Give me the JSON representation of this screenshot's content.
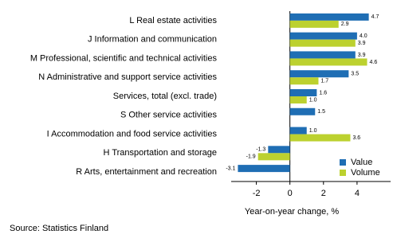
{
  "chart_data": {
    "type": "hbar",
    "categories": [
      "L Real estate activities",
      "J Information and communication",
      "M Professional, scientific and technical activities",
      "N Administrative and support service activities",
      "Services, total (excl. trade)",
      "S Other service activities",
      "I Accommodation and food service activities",
      "H Transportation and storage",
      "R Arts, entertainment and recreation"
    ],
    "series": [
      {
        "name": "Value",
        "color": "#1f6eb4",
        "values": [
          4.7,
          4.0,
          3.9,
          3.5,
          1.6,
          1.5,
          1.0,
          -1.3,
          -3.1
        ],
        "value_labels": [
          "4.7",
          "4.0",
          "3.9",
          "3.5",
          "1.6",
          "1.5",
          "1.0",
          "-1.3",
          "-3.1"
        ]
      },
      {
        "name": "Volume",
        "color": "#bcd12f",
        "values": [
          2.9,
          3.9,
          4.6,
          1.7,
          1.0,
          null,
          3.6,
          -1.9,
          null
        ],
        "value_labels": [
          "2.9",
          "3.9",
          "4.6",
          "1.7",
          "1.0",
          null,
          "3.6",
          "-1.9",
          null
        ]
      }
    ],
    "xlim": [
      -3.5,
      6
    ],
    "xticks": [
      -2,
      0,
      2,
      4
    ],
    "xlabel": "Year-on-year change, %",
    "source": "Source: Statistics Finland",
    "legend": "lower-right"
  }
}
